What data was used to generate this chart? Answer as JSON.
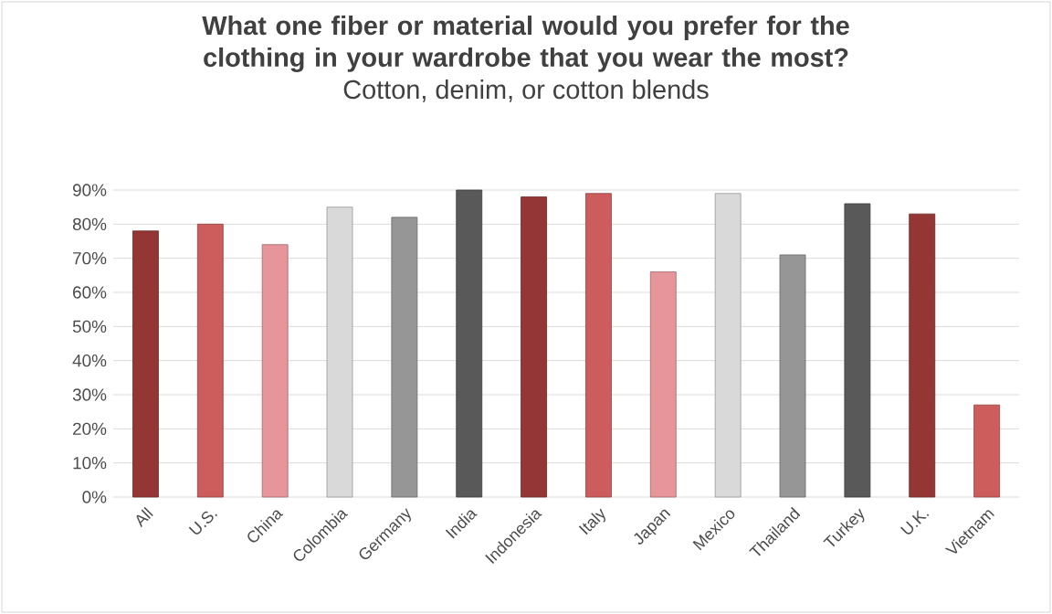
{
  "chart_data": {
    "type": "bar",
    "title": "What one fiber or material would you prefer for the clothing in your wardrobe that you wear the most?",
    "subtitle": "Cotton, denim, or cotton blends",
    "categories": [
      "All",
      "U.S.",
      "China",
      "Colombia",
      "Germany",
      "India",
      "Indonesia",
      "Italy",
      "Japan",
      "Mexico",
      "Thailand",
      "Turkey",
      "U.K.",
      "Vietnam"
    ],
    "values": [
      78,
      80,
      74,
      85,
      82,
      90,
      88,
      89,
      66,
      89,
      71,
      86,
      83,
      27
    ],
    "colors": [
      "#943634",
      "#cd5c5c",
      "#e6959a",
      "#d9d9d9",
      "#969696",
      "#595959",
      "#943634",
      "#cd5c5c",
      "#e6959a",
      "#d9d9d9",
      "#969696",
      "#595959",
      "#943634",
      "#cd5c5c"
    ],
    "ylim": [
      0,
      90
    ],
    "yticks": [
      {
        "value": 0,
        "label": "0%"
      },
      {
        "value": 10,
        "label": "10%"
      },
      {
        "value": 20,
        "label": "20%"
      },
      {
        "value": 30,
        "label": "30%"
      },
      {
        "value": 40,
        "label": "40%"
      },
      {
        "value": 50,
        "label": "50%"
      },
      {
        "value": 60,
        "label": "60%"
      },
      {
        "value": 70,
        "label": "70%"
      },
      {
        "value": 80,
        "label": "80%"
      },
      {
        "value": 90,
        "label": "90%"
      }
    ],
    "grid": "y"
  }
}
